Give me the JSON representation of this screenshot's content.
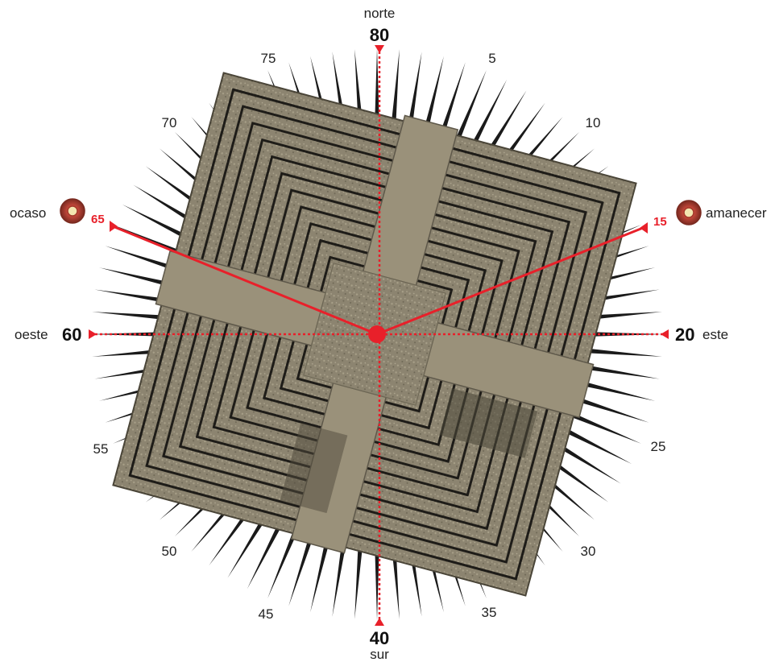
{
  "labels": {
    "north_word": "norte",
    "north_num": "80",
    "south_word": "sur",
    "south_num": "40",
    "east_word": "este",
    "east_num": "20",
    "west_word": "oeste",
    "west_num": "60",
    "sunrise_word": "amanecer",
    "sunrise_num": "15",
    "sunset_word": "ocaso",
    "sunset_num": "65"
  },
  "ticks": [
    "5",
    "10",
    "25",
    "30",
    "35",
    "45",
    "50",
    "55",
    "70",
    "75"
  ],
  "colors": {
    "axis_red": "#e8202a",
    "ray": "#1a1a1a",
    "stone": "#8c8470",
    "stone_dark": "#5e584a",
    "terrace_line": "#1e1c18"
  },
  "icons": {
    "sun": "sun-rosette-icon"
  }
}
